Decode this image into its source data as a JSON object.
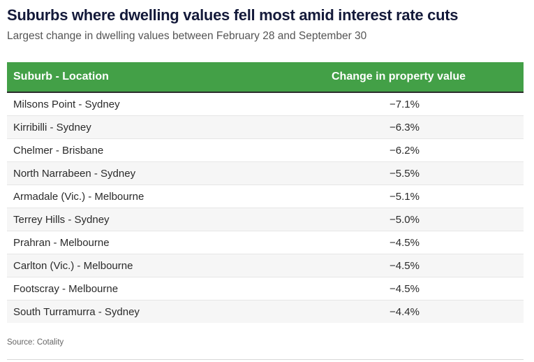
{
  "header": {
    "title": "Suburbs where dwelling values fell most amid interest rate cuts",
    "subtitle": "Largest change in dwelling values between February 28 and September 30"
  },
  "colors": {
    "header_bg": "#43a047",
    "title": "#141a3a"
  },
  "table": {
    "columns": [
      "Suburb - Location",
      "Change in property value"
    ],
    "rows": [
      {
        "suburb": "Milsons Point - Sydney",
        "change": "−7.1%"
      },
      {
        "suburb": "Kirribilli - Sydney",
        "change": "−6.3%"
      },
      {
        "suburb": "Chelmer - Brisbane",
        "change": "−6.2%"
      },
      {
        "suburb": "North Narrabeen - Sydney",
        "change": "−5.5%"
      },
      {
        "suburb": "Armadale (Vic.) - Melbourne",
        "change": "−5.1%"
      },
      {
        "suburb": "Terrey Hills - Sydney",
        "change": "−5.0%"
      },
      {
        "suburb": "Prahran - Melbourne",
        "change": "−4.5%"
      },
      {
        "suburb": "Carlton (Vic.) - Melbourne",
        "change": "−4.5%"
      },
      {
        "suburb": "Footscray - Melbourne",
        "change": "−4.5%"
      },
      {
        "suburb": "South Turramurra - Sydney",
        "change": "−4.4%"
      }
    ]
  },
  "footer": {
    "source": "Source: Cotality"
  },
  "chart_data": {
    "type": "table",
    "title": "Suburbs where dwelling values fell most amid interest rate cuts",
    "subtitle": "Largest change in dwelling values between February 28 and September 30",
    "columns": [
      "Suburb - Location",
      "Change in property value"
    ],
    "categories": [
      "Milsons Point - Sydney",
      "Kirribilli - Sydney",
      "Chelmer - Brisbane",
      "North Narrabeen - Sydney",
      "Armadale (Vic.) - Melbourne",
      "Terrey Hills - Sydney",
      "Prahran - Melbourne",
      "Carlton (Vic.) - Melbourne",
      "Footscray - Melbourne",
      "South Turramurra - Sydney"
    ],
    "values": [
      -7.1,
      -6.3,
      -6.2,
      -5.5,
      -5.1,
      -5.0,
      -4.5,
      -4.5,
      -4.5,
      -4.4
    ],
    "unit": "%",
    "source": "Source: Cotality"
  }
}
